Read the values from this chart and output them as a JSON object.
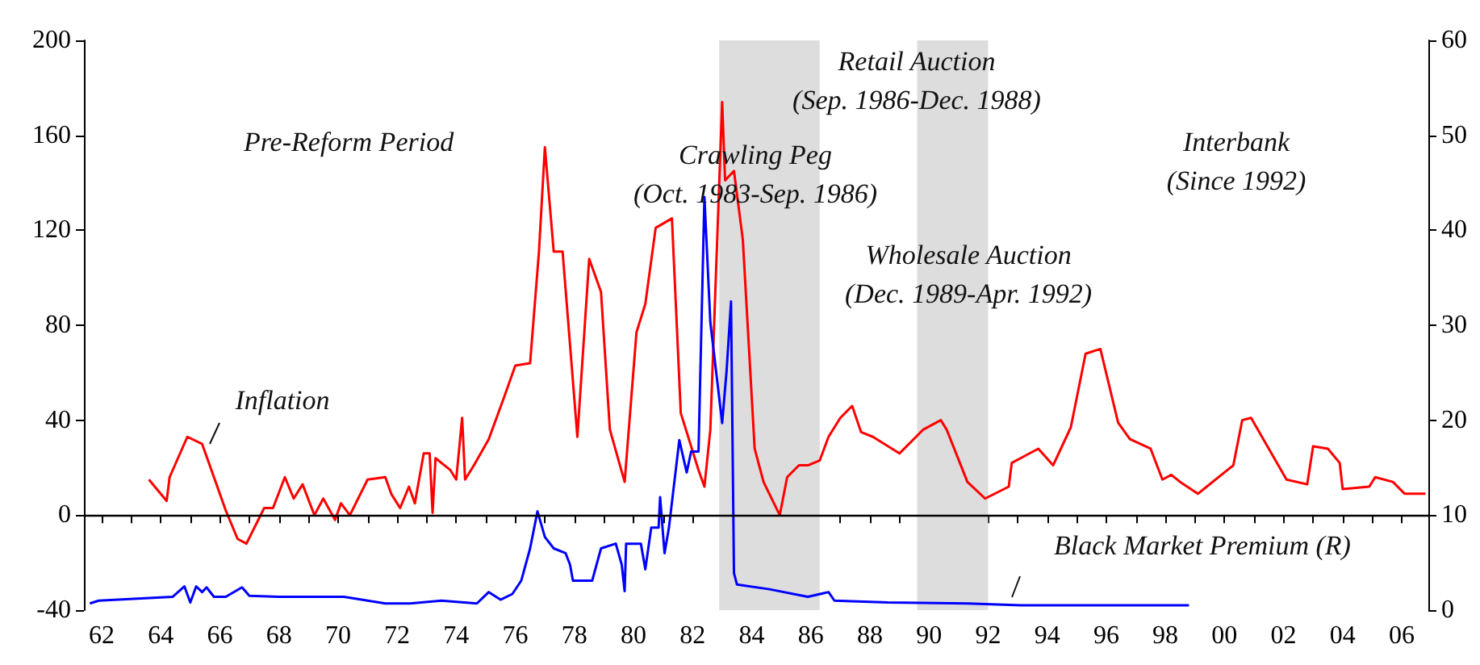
{
  "chart_data": {
    "type": "line",
    "annotations": [
      "Pre-Reform Period",
      "Crawling Peg\n(Oct. 1983-Sep. 1986)",
      "Retail Auction\n(Sep. 1986-Dec. 1988)",
      "Wholesale Auction\n(Dec. 1989-Apr. 1992)",
      "Interbank\n(Since 1992)"
    ],
    "series": [
      {
        "name": "Inflation",
        "color": "#ff0000",
        "x": [
          1963.6,
          1964.2,
          1964.3,
          1964.9,
          1965.4,
          1965.8,
          1966.2,
          1966.6,
          1966.9,
          1967.5,
          1967.8,
          1968.2,
          1968.5,
          1968.8,
          1969.2,
          1969.5,
          1969.9,
          1970.1,
          1970.4,
          1971.0,
          1971.6,
          1971.8,
          1972.1,
          1972.4,
          1972.6,
          1972.9,
          1973.1,
          1973.2,
          1973.3,
          1973.8,
          1974.0,
          1974.2,
          1974.3,
          1974.6,
          1975.1,
          1975.6,
          1976.0,
          1976.5,
          1976.8,
          1977.0,
          1977.3,
          1977.6,
          1978.1,
          1978.5,
          1978.9,
          1979.2,
          1979.7,
          1980.1,
          1980.4,
          1980.75,
          1981.3,
          1981.6,
          1982.2,
          1982.4,
          1982.6,
          1983.0,
          1983.1,
          1983.4,
          1983.7,
          1984.1,
          1984.4,
          1984.95,
          1985.2,
          1985.6,
          1985.9,
          1986.3,
          1986.6,
          1987.0,
          1987.4,
          1987.7,
          1988.1,
          1989.0,
          1989.8,
          1990.4,
          1990.6,
          1991.3,
          1991.9,
          1992.7,
          1992.8,
          1993.7,
          1994.2,
          1994.8,
          1995.3,
          1995.8,
          1996.4,
          1996.8,
          1997.5,
          1997.9,
          1998.2,
          1998.5,
          1999.1,
          1999.4,
          2000.3,
          2000.6,
          2000.9,
          2002.1,
          2002.8,
          2003.0,
          2003.5,
          2003.9,
          2004.0,
          2004.9,
          2005.1,
          2005.7,
          2006.1,
          2006.8
        ],
        "values": [
          15,
          6,
          16,
          33,
          30,
          16,
          2,
          -10,
          -12,
          3,
          3,
          16,
          7,
          13,
          0,
          7,
          -2,
          5,
          0,
          15,
          16,
          9,
          3,
          12,
          5,
          26,
          26,
          1,
          24,
          19,
          15,
          41,
          15,
          21,
          32,
          49,
          63,
          64,
          111,
          155,
          111,
          111,
          33,
          108,
          94,
          36,
          14,
          77,
          89,
          121,
          125,
          43,
          19,
          12,
          36,
          174,
          141,
          145,
          116,
          28,
          14,
          0,
          16,
          21,
          21,
          23,
          33,
          41,
          46,
          35,
          33,
          26,
          36,
          40,
          36,
          14,
          7,
          12,
          22,
          28,
          21,
          37,
          68,
          70,
          39,
          32,
          28,
          15,
          17,
          14,
          9,
          12,
          21,
          40,
          41,
          15,
          13,
          29,
          28,
          22,
          11,
          12,
          16,
          14,
          9,
          9
        ]
      },
      {
        "name": "Black Market Premium (R)",
        "color": "#0000ff",
        "axis": "y2",
        "x": [
          1961.6,
          1961.9,
          1964.4,
          1964.8,
          1965.0,
          1965.2,
          1965.4,
          1965.55,
          1965.8,
          1966.2,
          1966.75,
          1967.0,
          1968.0,
          1970.2,
          1971.6,
          1972.4,
          1973.5,
          1974.7,
          1975.1,
          1975.5,
          1975.9,
          1976.2,
          1976.5,
          1976.75,
          1977.0,
          1977.3,
          1977.7,
          1977.85,
          1977.95,
          1978.6,
          1978.9,
          1979.4,
          1979.6,
          1979.7,
          1979.75,
          1980.25,
          1980.4,
          1980.6,
          1980.85,
          1980.9,
          1981.05,
          1981.2,
          1981.55,
          1981.8,
          1981.95,
          1982.2,
          1982.4,
          1982.6,
          1983.0,
          1983.15,
          1983.3,
          1983.4,
          1983.5,
          1984.6,
          1985.9,
          1986.6,
          1986.8,
          1988.6,
          1991.3,
          1993.1,
          1998.8
        ],
        "values": [
          0.7,
          1.0,
          1.4,
          2.5,
          0.8,
          2.5,
          1.9,
          2.4,
          1.4,
          1.4,
          2.4,
          1.5,
          1.4,
          1.4,
          0.7,
          0.7,
          1.0,
          0.7,
          1.9,
          1.1,
          1.7,
          3.1,
          6.5,
          10.4,
          7.7,
          6.5,
          6.0,
          4.8,
          3.1,
          3.1,
          6.5,
          7.0,
          4.8,
          2.0,
          7.0,
          7.0,
          4.3,
          8.7,
          8.7,
          11.9,
          6.0,
          8.7,
          17.9,
          14.5,
          16.7,
          16.7,
          43.5,
          30.3,
          19.7,
          25.2,
          32.5,
          3.9,
          2.7,
          2.2,
          1.4,
          1.9,
          1.0,
          0.8,
          0.7,
          0.5,
          0.5
        ]
      }
    ],
    "xlim": [
      1961.4,
      2006.9
    ],
    "xticks": [
      {
        "value": 1962,
        "label": "62"
      },
      {
        "value": 1963,
        "label": null
      },
      {
        "value": 1964,
        "label": "64"
      },
      {
        "value": 1965,
        "label": null
      },
      {
        "value": 1966,
        "label": "66"
      },
      {
        "value": 1967,
        "label": null
      },
      {
        "value": 1968,
        "label": "68"
      },
      {
        "value": 1969,
        "label": null
      },
      {
        "value": 1970,
        "label": "70"
      },
      {
        "value": 1971,
        "label": null
      },
      {
        "value": 1972,
        "label": "72"
      },
      {
        "value": 1973,
        "label": null
      },
      {
        "value": 1974,
        "label": "74"
      },
      {
        "value": 1975,
        "label": null
      },
      {
        "value": 1976,
        "label": "76"
      },
      {
        "value": 1977,
        "label": null
      },
      {
        "value": 1978,
        "label": "78"
      },
      {
        "value": 1979,
        "label": null
      },
      {
        "value": 1980,
        "label": "80"
      },
      {
        "value": 1981,
        "label": null
      },
      {
        "value": 1982,
        "label": "82"
      },
      {
        "value": 1983,
        "label": null
      },
      {
        "value": 1984,
        "label": "84"
      },
      {
        "value": 1985,
        "label": null
      },
      {
        "value": 1986,
        "label": "86"
      },
      {
        "value": 1987,
        "label": null
      },
      {
        "value": 1988,
        "label": "88"
      },
      {
        "value": 1989,
        "label": null
      },
      {
        "value": 1990,
        "label": "90"
      },
      {
        "value": 1991,
        "label": null
      },
      {
        "value": 1992,
        "label": "92"
      },
      {
        "value": 1993,
        "label": null
      },
      {
        "value": 1994,
        "label": "94"
      },
      {
        "value": 1995,
        "label": null
      },
      {
        "value": 1996,
        "label": "96"
      },
      {
        "value": 1997,
        "label": null
      },
      {
        "value": 1998,
        "label": "98"
      },
      {
        "value": 1999,
        "label": null
      },
      {
        "value": 2000,
        "label": "00"
      },
      {
        "value": 2001,
        "label": null
      },
      {
        "value": 2002,
        "label": "02"
      },
      {
        "value": 2003,
        "label": null
      },
      {
        "value": 2004,
        "label": "04"
      },
      {
        "value": 2005,
        "label": null
      },
      {
        "value": 2006,
        "label": "06"
      }
    ],
    "ylim": [
      -40,
      200
    ],
    "yticks": [
      -40,
      0,
      40,
      80,
      120,
      160,
      200
    ],
    "y2lim": [
      0,
      60
    ],
    "y2ticks": [
      0,
      10,
      20,
      30,
      40,
      50,
      60
    ],
    "ref_lines": [
      {
        "axis": "y",
        "value": 0,
        "color": "#000000"
      }
    ],
    "bands": [
      {
        "axis": "x",
        "from": 1982.9,
        "to": 1986.3,
        "color": "#dddddd"
      },
      {
        "axis": "x",
        "from": 1989.6,
        "to": 1992.0,
        "color": "#dddddd"
      }
    ],
    "grid": false,
    "legend": false,
    "marker": "none",
    "line_style": "solid"
  }
}
